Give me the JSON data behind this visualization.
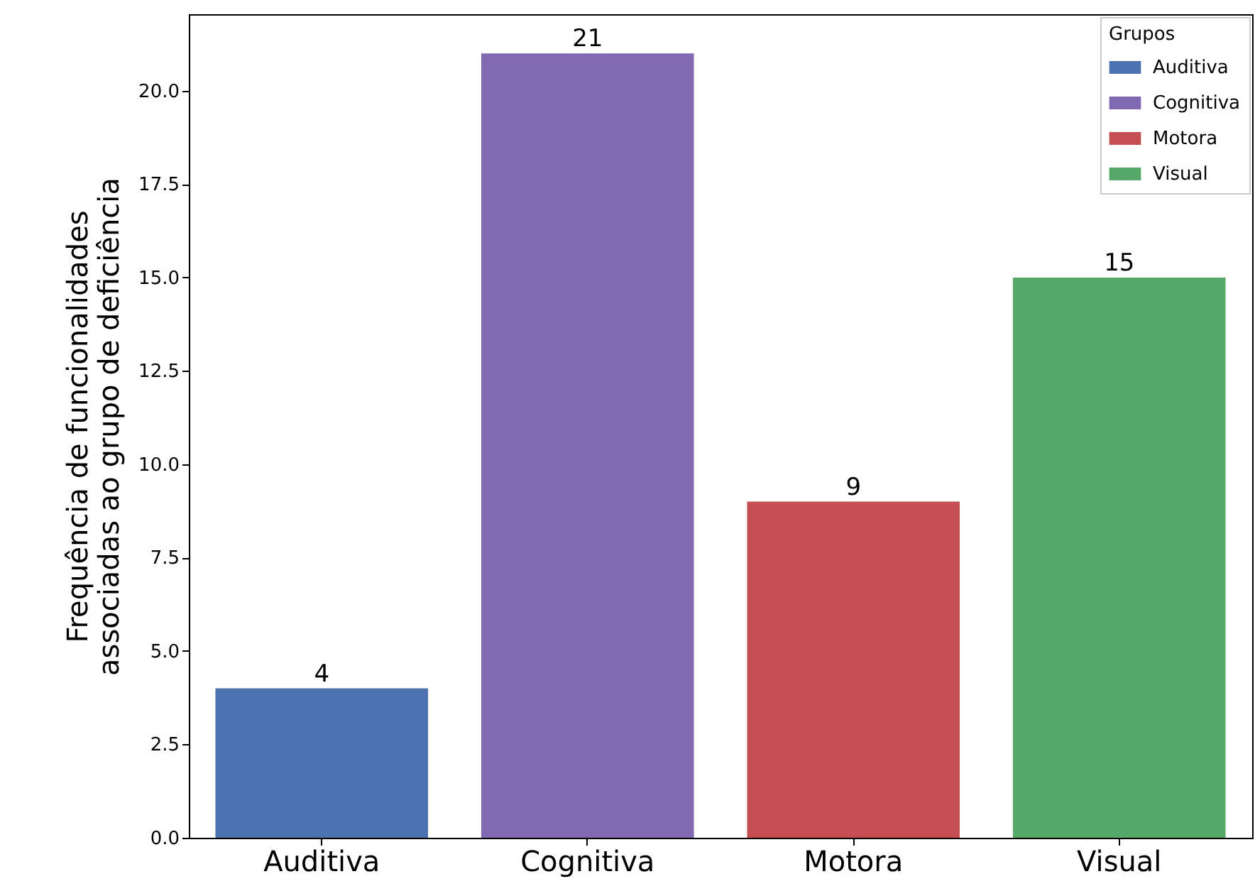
{
  "chart_data": {
    "type": "bar",
    "ylabel": "Frequência de funcionalidades\nassociadas ao grupo de deficiência",
    "legend_title": "Grupos",
    "categories": [
      "Auditiva",
      "Cognitiva",
      "Motora",
      "Visual"
    ],
    "stacked": true,
    "series": [
      {
        "name": "Auditiva",
        "color": "#4c72b0",
        "values": [
          4,
          null,
          null,
          null
        ]
      },
      {
        "name": "Cognitiva",
        "color": "#8169b2",
        "values": [
          null,
          21,
          null,
          null
        ]
      },
      {
        "name": "Motora",
        "color": "#c44e52",
        "values": [
          null,
          null,
          9,
          null
        ]
      },
      {
        "name": "Visual",
        "color": "#55a868",
        "values": [
          null,
          null,
          null,
          15
        ]
      }
    ],
    "ylim": [
      0,
      22.05
    ],
    "yticks": [
      {
        "value": 0,
        "label": "0.0"
      },
      {
        "value": 2.5,
        "label": "2.5"
      },
      {
        "value": 5,
        "label": "5.0"
      },
      {
        "value": 7.5,
        "label": "7.5"
      },
      {
        "value": 10,
        "label": "10.0"
      },
      {
        "value": 12.5,
        "label": "12.5"
      },
      {
        "value": 15,
        "label": "15.0"
      },
      {
        "value": 17.5,
        "label": "17.5"
      },
      {
        "value": 20,
        "label": "20.0"
      }
    ],
    "data_labels": true,
    "legend": "top right",
    "grid": false
  }
}
